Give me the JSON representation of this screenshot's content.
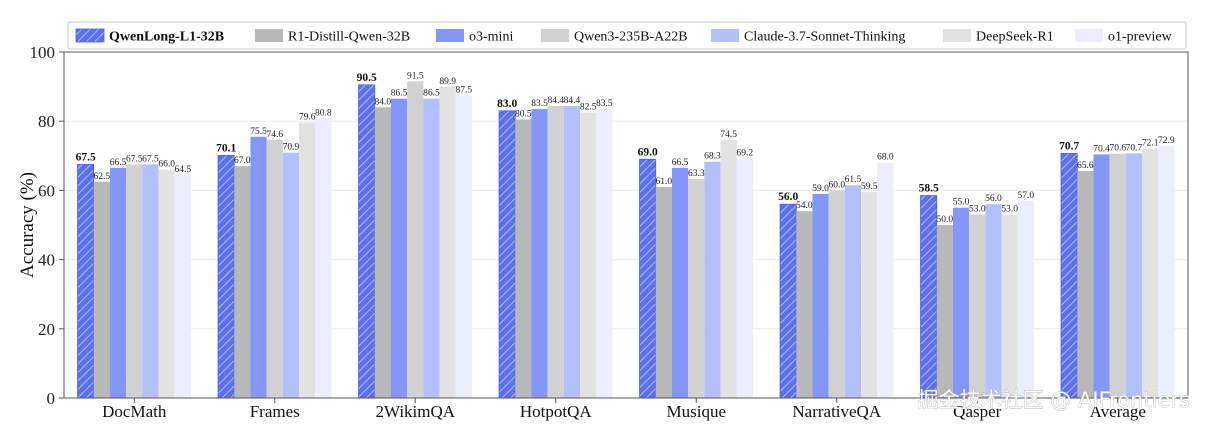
{
  "chart_data": {
    "type": "bar",
    "title": "",
    "xlabel": "",
    "ylabel": "Accuracy (%)",
    "ylim": [
      0,
      100
    ],
    "yticks": [
      0,
      20,
      40,
      60,
      80,
      100
    ],
    "grid": true,
    "legend_position": "top",
    "categories": [
      "DocMath",
      "Frames",
      "2WikimQA",
      "HotpotQA",
      "Musique",
      "NarrativeQA",
      "Qasper",
      "Average"
    ],
    "series": [
      {
        "name": "QwenLong-L1-32B",
        "color": "#5b70f0",
        "hatch": true,
        "bold": true,
        "values": [
          67.5,
          70.1,
          90.5,
          83.0,
          69.0,
          56.0,
          58.5,
          70.7
        ]
      },
      {
        "name": "R1-Distill-Qwen-32B",
        "color": "#b8b8b8",
        "values": [
          62.5,
          67.0,
          84.0,
          80.5,
          61.0,
          54.0,
          50.0,
          65.6
        ]
      },
      {
        "name": "o3-mini",
        "color": "#8496f7",
        "values": [
          66.5,
          75.5,
          86.5,
          83.5,
          66.5,
          59.0,
          55.0,
          70.4
        ]
      },
      {
        "name": "Qwen3-235B-A22B",
        "color": "#d1d1d1",
        "values": [
          67.5,
          74.6,
          91.5,
          84.4,
          63.3,
          60.0,
          53.0,
          70.6
        ]
      },
      {
        "name": "Claude-3.7-Sonnet-Thinking",
        "color": "#b4c0fa",
        "values": [
          67.5,
          70.9,
          86.5,
          84.4,
          68.3,
          61.5,
          56.0,
          70.7
        ]
      },
      {
        "name": "DeepSeek-R1",
        "color": "#e2e2e2",
        "values": [
          66.0,
          79.6,
          89.9,
          82.5,
          74.5,
          59.5,
          53.0,
          72.1
        ]
      },
      {
        "name": "o1-preview",
        "color": "#eceefd",
        "values": [
          64.5,
          80.8,
          87.5,
          83.5,
          69.2,
          68.0,
          57.0,
          72.9
        ]
      }
    ]
  },
  "watermark": "掘金技术社区 @ AIFrontiers"
}
